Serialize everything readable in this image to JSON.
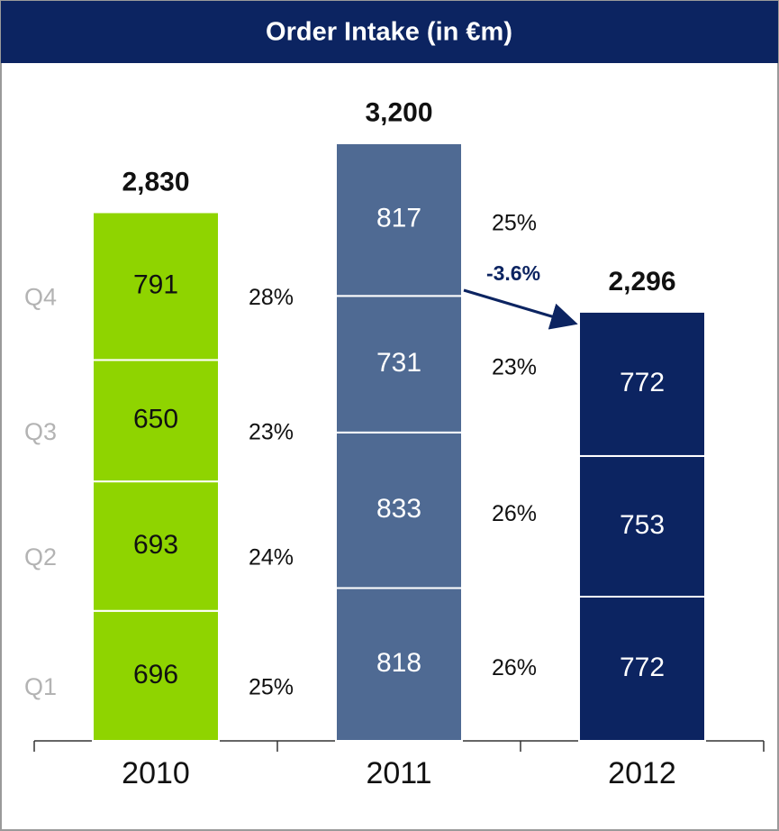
{
  "chart_data": {
    "type": "stacked-bar",
    "title": "Order Intake (in €m)",
    "categories": [
      "2010",
      "2011",
      "2012"
    ],
    "colors": [
      "#8fd400",
      "#4f6a93",
      "#0c2461"
    ],
    "value_label_colors": [
      "#111111",
      "#ffffff",
      "#ffffff"
    ],
    "series": [
      {
        "name": "Q1",
        "values": [
          696,
          818,
          772
        ],
        "share_labels": [
          "25%",
          "26%",
          null
        ]
      },
      {
        "name": "Q2",
        "values": [
          693,
          833,
          753
        ],
        "share_labels": [
          "24%",
          "26%",
          null
        ]
      },
      {
        "name": "Q3",
        "values": [
          650,
          731,
          772
        ],
        "share_labels": [
          "23%",
          "23%",
          null
        ]
      },
      {
        "name": "Q4",
        "values": [
          791,
          817,
          null
        ],
        "share_labels": [
          "28%",
          "25%",
          null
        ]
      }
    ],
    "totals": [
      2830,
      3200,
      2296
    ],
    "total_labels": [
      "2,830",
      "3,200",
      "2,296"
    ],
    "annotation": "-3.6%"
  }
}
